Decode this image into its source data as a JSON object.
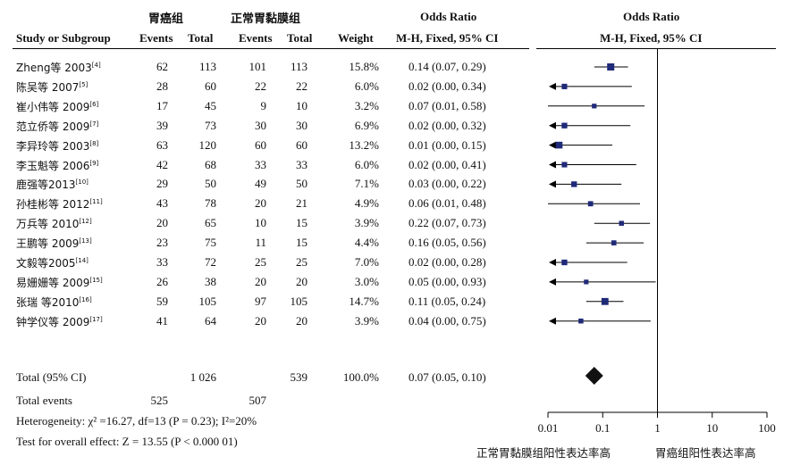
{
  "header": {
    "group1": "胃癌组",
    "group2": "正常胃黏膜组",
    "or_label": "Odds Ratio",
    "plot_title": "Odds Ratio",
    "col_study": "Study or Subgroup",
    "col_events1": "Events",
    "col_total1": "Total",
    "col_events2": "Events",
    "col_total2": "Total",
    "col_weight": "Weight",
    "col_method": "M-H, Fixed, 95% CI",
    "plot_method": "M-H, Fixed, 95% CI"
  },
  "studies": [
    {
      "name": "Zheng等 2003",
      "ref": "[4]",
      "events1": "62",
      "total1": "113",
      "events2": "101",
      "total2": "113",
      "weight": "15.8%",
      "ci": "0.14 (0.07, 0.29)"
    },
    {
      "name": "陈吴等 2007",
      "ref": "[5]",
      "events1": "28",
      "total1": "60",
      "events2": "22",
      "total2": "22",
      "weight": "6.0%",
      "ci": "0.02 (0.00, 0.34)"
    },
    {
      "name": "崔小伟等 2009",
      "ref": "[6]",
      "events1": "17",
      "total1": "45",
      "events2": "9",
      "total2": "10",
      "weight": "3.2%",
      "ci": "0.07 (0.01, 0.58)"
    },
    {
      "name": "范立侨等 2009",
      "ref": "[7]",
      "events1": "39",
      "total1": "73",
      "events2": "30",
      "total2": "30",
      "weight": "6.9%",
      "ci": "0.02 (0.00, 0.32)"
    },
    {
      "name": "李异玲等 2003",
      "ref": "[8]",
      "events1": "63",
      "total1": "120",
      "events2": "60",
      "total2": "60",
      "weight": "13.2%",
      "ci": "0.01 (0.00, 0.15)"
    },
    {
      "name": "李玉魁等 2006",
      "ref": "[9]",
      "events1": "42",
      "total1": "68",
      "events2": "33",
      "total2": "33",
      "weight": "6.0%",
      "ci": "0.02 (0.00, 0.41)"
    },
    {
      "name": "鹿强等2013",
      "ref": "[10]",
      "events1": "29",
      "total1": "50",
      "events2": "49",
      "total2": "50",
      "weight": "7.1%",
      "ci": "0.03 (0.00, 0.22)"
    },
    {
      "name": "孙桂彬等 2012",
      "ref": "[11]",
      "events1": "43",
      "total1": "78",
      "events2": "20",
      "total2": "21",
      "weight": "4.9%",
      "ci": "0.06 (0.01, 0.48)"
    },
    {
      "name": "万兵等 2010",
      "ref": "[12]",
      "events1": "20",
      "total1": "65",
      "events2": "10",
      "total2": "15",
      "weight": "3.9%",
      "ci": "0.22 (0.07, 0.73)"
    },
    {
      "name": "王鹏等 2009",
      "ref": "[13]",
      "events1": "23",
      "total1": "75",
      "events2": "11",
      "total2": "15",
      "weight": "4.4%",
      "ci": "0.16 (0.05, 0.56)"
    },
    {
      "name": "文毅等2005",
      "ref": "[14]",
      "events1": "33",
      "total1": "72",
      "events2": "25",
      "total2": "25",
      "weight": "7.0%",
      "ci": "0.02 (0.00, 0.28)"
    },
    {
      "name": "易姗姗等 2009",
      "ref": "[15]",
      "events1": "26",
      "total1": "38",
      "events2": "20",
      "total2": "20",
      "weight": "3.0%",
      "ci": "0.05 (0.00, 0.93)"
    },
    {
      "name": "张瑞 等2010",
      "ref": "[16]",
      "events1": "59",
      "total1": "105",
      "events2": "97",
      "total2": "105",
      "weight": "14.7%",
      "ci": "0.11 (0.05, 0.24)"
    },
    {
      "name": "钟学仪等 2009",
      "ref": "[17]",
      "events1": "41",
      "total1": "64",
      "events2": "20",
      "total2": "20",
      "weight": "3.9%",
      "ci": "0.04 (0.00, 0.75)"
    }
  ],
  "total_row": {
    "label": "Total (95% CI)",
    "total1": "1 026",
    "total2": "539",
    "weight": "100.0%",
    "ci": "0.07 (0.05, 0.10)"
  },
  "total_events": {
    "label": "Total events",
    "events1": "525",
    "events2": "507"
  },
  "heterogeneity": "Heterogeneity:  χ² =16.27, df=13 (P = 0.23); I²=20%",
  "overall_effect": "Test for overall effect: Z = 13.55 (P < 0.000 01)",
  "axis": {
    "ticks": [
      "0.01",
      "0.1",
      "1",
      "10",
      "100"
    ],
    "favours_left": "正常胃黏膜组阳性表达率高",
    "favours_right": "胃癌组阳性表达率高"
  },
  "chart_data": {
    "type": "scatter",
    "subtype": "forest-plot",
    "x_scale": "log",
    "xlim": [
      0.01,
      100
    ],
    "null_line": 1,
    "points": [
      {
        "label": "Zheng等 2003",
        "or": 0.14,
        "lo": 0.07,
        "hi": 0.29,
        "weight": 15.8
      },
      {
        "label": "陈吴等 2007",
        "or": 0.02,
        "lo": 0.0,
        "hi": 0.34,
        "weight": 6.0
      },
      {
        "label": "崔小伟等 2009",
        "or": 0.07,
        "lo": 0.01,
        "hi": 0.58,
        "weight": 3.2
      },
      {
        "label": "范立侨等 2009",
        "or": 0.02,
        "lo": 0.0,
        "hi": 0.32,
        "weight": 6.9
      },
      {
        "label": "李异玲等 2003",
        "or": 0.01,
        "lo": 0.0,
        "hi": 0.15,
        "weight": 13.2
      },
      {
        "label": "李玉魁等 2006",
        "or": 0.02,
        "lo": 0.0,
        "hi": 0.41,
        "weight": 6.0
      },
      {
        "label": "鹿强等2013",
        "or": 0.03,
        "lo": 0.0,
        "hi": 0.22,
        "weight": 7.1
      },
      {
        "label": "孙桂彬等 2012",
        "or": 0.06,
        "lo": 0.01,
        "hi": 0.48,
        "weight": 4.9
      },
      {
        "label": "万兵等 2010",
        "or": 0.22,
        "lo": 0.07,
        "hi": 0.73,
        "weight": 3.9
      },
      {
        "label": "王鹏等 2009",
        "or": 0.16,
        "lo": 0.05,
        "hi": 0.56,
        "weight": 4.4
      },
      {
        "label": "文毅等2005",
        "or": 0.02,
        "lo": 0.0,
        "hi": 0.28,
        "weight": 7.0
      },
      {
        "label": "易姗姗等 2009",
        "or": 0.05,
        "lo": 0.0,
        "hi": 0.93,
        "weight": 3.0
      },
      {
        "label": "张瑞 等2010",
        "or": 0.11,
        "lo": 0.05,
        "hi": 0.24,
        "weight": 14.7
      },
      {
        "label": "钟学仪等 2009",
        "or": 0.04,
        "lo": 0.0,
        "hi": 0.75,
        "weight": 3.9
      }
    ],
    "summary": {
      "or": 0.07,
      "lo": 0.05,
      "hi": 0.1
    },
    "colors": {
      "marker": "#1f2a78",
      "summary": "#111111",
      "line": "#000000"
    }
  }
}
